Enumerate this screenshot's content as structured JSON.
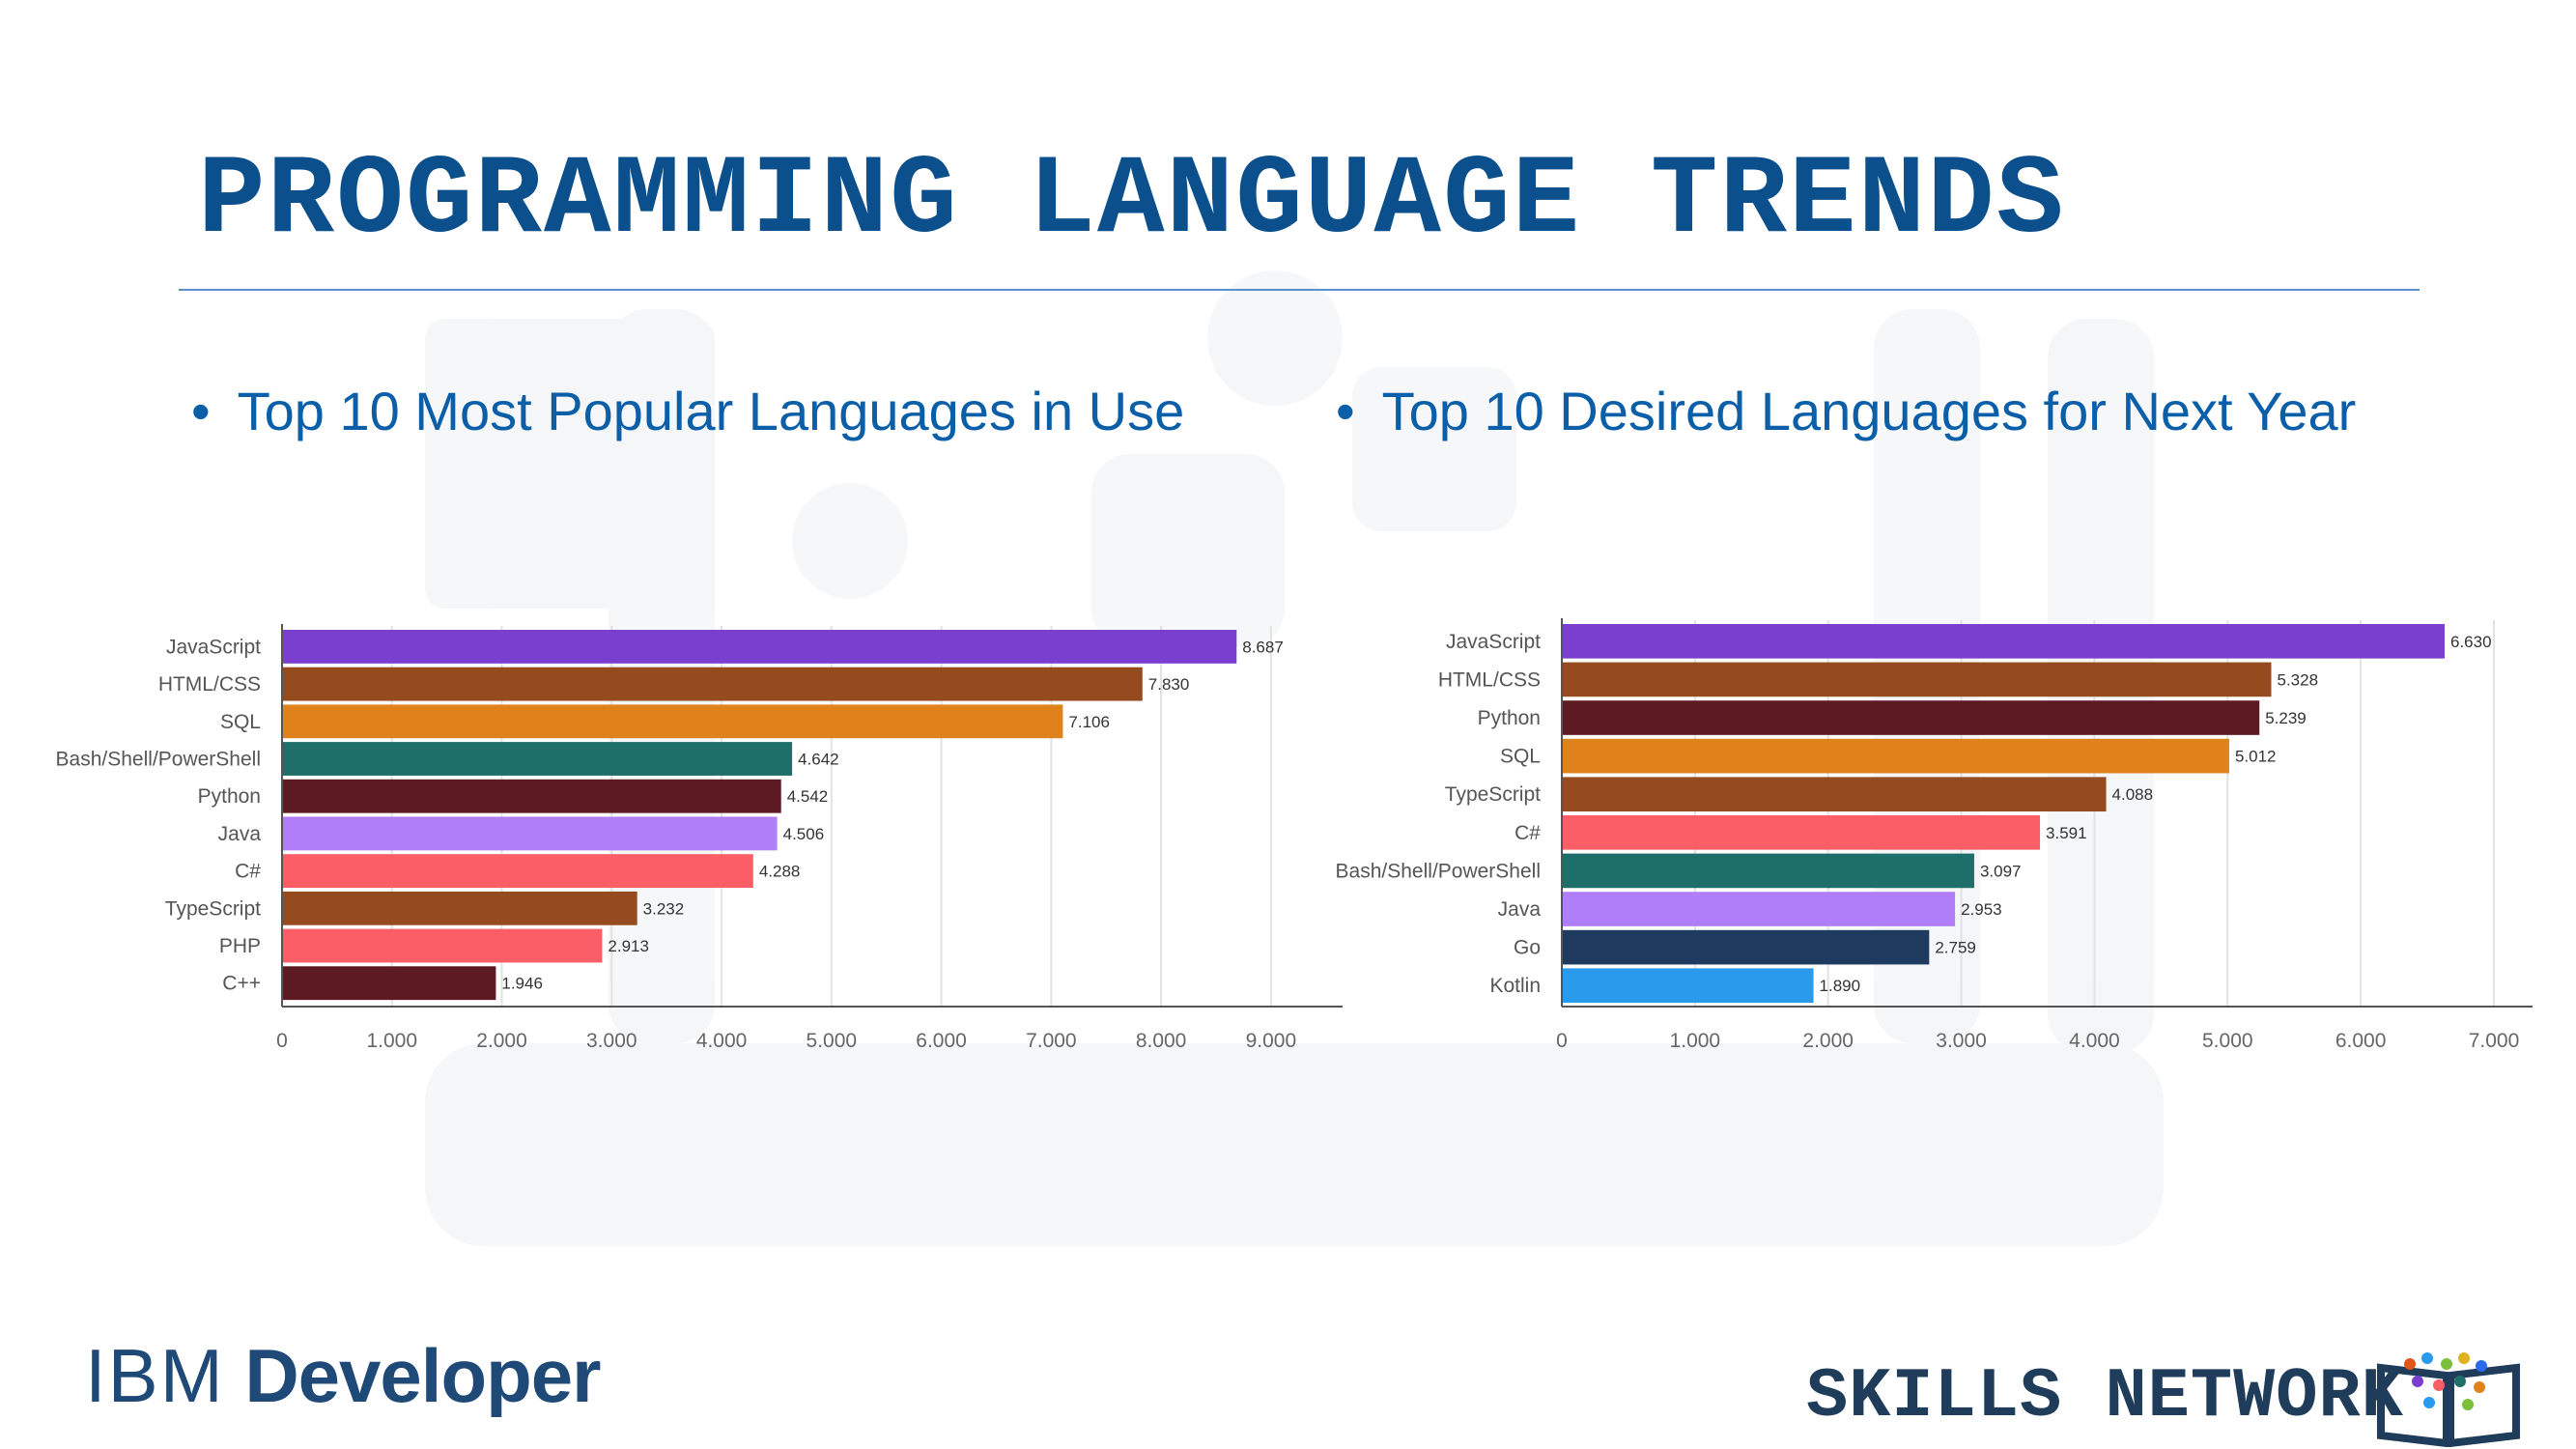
{
  "slide": {
    "title": "PROGRAMMING LANGUAGE TRENDS",
    "bullet_left": "Top 10 Most Popular Languages in Use",
    "bullet_right": "Top 10 Desired Languages for Next Year",
    "bullet_symbol": "•"
  },
  "footer": {
    "brand_left_a": "IBM",
    "brand_left_b": " Developer",
    "brand_right": "SKILLS NETWORK"
  },
  "colors": {
    "title": "#0b4f8c",
    "bullet": "#0b5ea8",
    "JavaScript": "#7b3fd0",
    "HTML/CSS": "#964b1e",
    "SQL": "#e0821c",
    "Bash/Shell/PowerShell": "#1e6e6a",
    "Python": "#5e1a22",
    "Java": "#b07ef8",
    "C#": "#fc5e68",
    "TypeScript": "#964b1e",
    "PHP": "#fc5e68",
    "C++": "#5e1a22",
    "Go": "#1e3a5e",
    "Kotlin": "#2a9aec"
  },
  "chart_data": [
    {
      "type": "bar",
      "orientation": "horizontal",
      "categories": [
        "JavaScript",
        "HTML/CSS",
        "SQL",
        "Bash/Shell/PowerShell",
        "Python",
        "Java",
        "C#",
        "TypeScript",
        "PHP",
        "C++"
      ],
      "values": [
        8687,
        7830,
        7106,
        4642,
        4542,
        4506,
        4288,
        3232,
        2913,
        1946
      ],
      "value_labels": [
        "8.687",
        "7.830",
        "7.106",
        "4.642",
        "4.542",
        "4.506",
        "4.288",
        "3.232",
        "2.913",
        "1.946"
      ],
      "xticks": [
        0,
        1000,
        2000,
        3000,
        4000,
        5000,
        6000,
        7000,
        8000,
        9000
      ],
      "xtick_labels": [
        "0",
        "1.000",
        "2.000",
        "3.000",
        "4.000",
        "5.000",
        "6.000",
        "7.000",
        "8.000",
        "9.000"
      ],
      "xlim": [
        0,
        9300
      ],
      "grid": true
    },
    {
      "type": "bar",
      "orientation": "horizontal",
      "categories": [
        "JavaScript",
        "HTML/CSS",
        "Python",
        "SQL",
        "TypeScript",
        "C#",
        "Bash/Shell/PowerShell",
        "Java",
        "Go",
        "Kotlin"
      ],
      "values": [
        6630,
        5328,
        5239,
        5012,
        4088,
        3591,
        3097,
        2953,
        2759,
        1890
      ],
      "value_labels": [
        "6.630",
        "5.328",
        "5.239",
        "5.012",
        "4.088",
        "3.591",
        "3.097",
        "2.953",
        "2.759",
        "1.890"
      ],
      "xticks": [
        0,
        1000,
        2000,
        3000,
        4000,
        5000,
        6000,
        7000
      ],
      "xtick_labels": [
        "0",
        "1.000",
        "2.000",
        "3.000",
        "4.000",
        "5.000",
        "6.000",
        "7.000"
      ],
      "xlim": [
        0,
        7000
      ],
      "grid": true
    }
  ]
}
